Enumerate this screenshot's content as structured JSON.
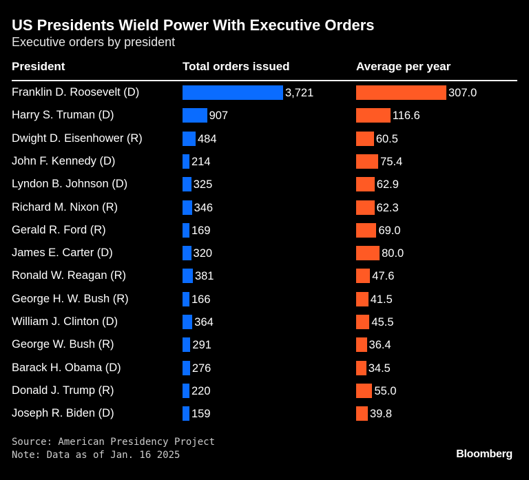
{
  "title": "US Presidents Wield Power With Executive Orders",
  "subtitle": "Executive orders by president",
  "chart_data": {
    "type": "bar",
    "columns": [
      "President",
      "Total orders issued",
      "Average per year"
    ],
    "categories": [
      "Franklin D. Roosevelt (D)",
      "Harry S. Truman (D)",
      "Dwight D. Eisenhower (R)",
      "John F. Kennedy (D)",
      "Lyndon B. Johnson (D)",
      "Richard M. Nixon (R)",
      "Gerald R. Ford (R)",
      "James E. Carter (D)",
      "Ronald W. Reagan (R)",
      "George H. W. Bush (R)",
      "William J. Clinton (D)",
      "George W. Bush (R)",
      "Barack H. Obama (D)",
      "Donald J. Trump (R)",
      "Joseph R. Biden (D)"
    ],
    "series": [
      {
        "name": "Total orders issued",
        "color": "#0a6cff",
        "values": [
          3721,
          907,
          484,
          214,
          325,
          346,
          169,
          320,
          381,
          166,
          364,
          291,
          276,
          220,
          159
        ],
        "labels": [
          "3,721",
          "907",
          "484",
          "214",
          "325",
          "346",
          "169",
          "320",
          "381",
          "166",
          "364",
          "291",
          "276",
          "220",
          "159"
        ]
      },
      {
        "name": "Average per year",
        "color": "#ff5a24",
        "values": [
          307.0,
          116.6,
          60.5,
          75.4,
          62.9,
          62.3,
          69.0,
          80.0,
          47.6,
          41.5,
          45.5,
          36.4,
          34.5,
          55.0,
          39.8
        ],
        "labels": [
          "307.0",
          "116.6",
          "60.5",
          "75.4",
          "62.9",
          "62.3",
          "69.0",
          "80.0",
          "47.6",
          "41.5",
          "45.5",
          "36.4",
          "34.5",
          "55.0",
          "39.8"
        ]
      }
    ]
  },
  "footer": {
    "source": "Source: American Presidency Project",
    "note": "Note: Data as of Jan. 16 2025",
    "logo": "Bloomberg"
  }
}
